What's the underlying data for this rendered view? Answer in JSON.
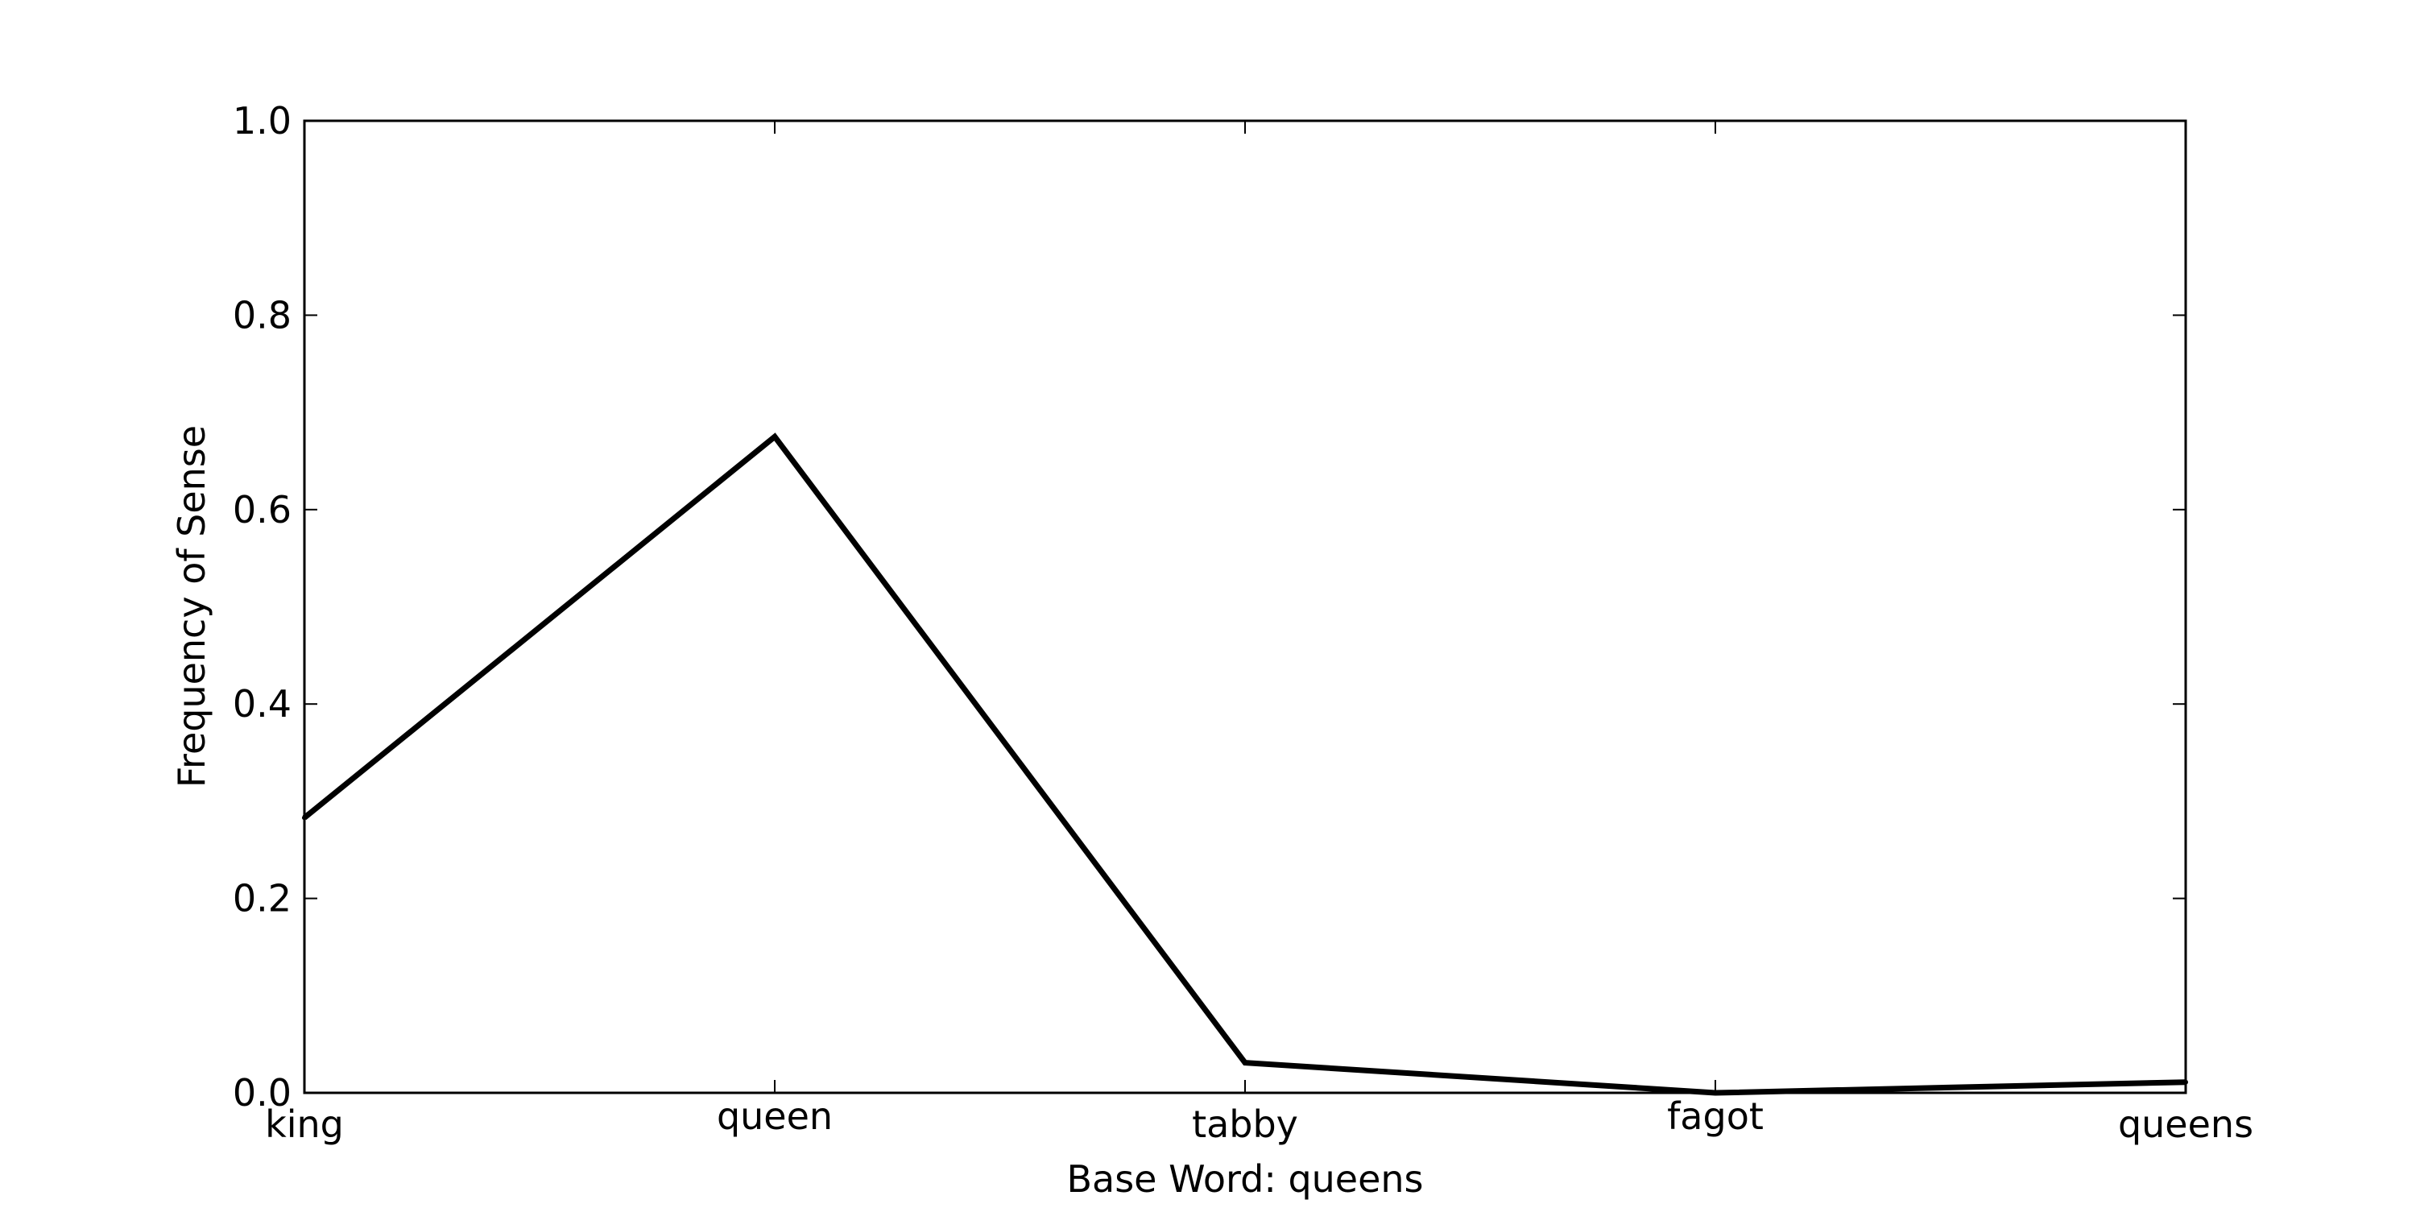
{
  "chart_data": {
    "type": "line",
    "title": "",
    "xlabel": "Base Word: queens",
    "ylabel": "Frequency of Sense",
    "categories": [
      "king",
      "queen",
      "tabby",
      "fagot",
      "queens"
    ],
    "series": [
      {
        "values": [
          0.283,
          0.675,
          0.031,
          0.0,
          0.011
        ]
      }
    ],
    "ylim": [
      0,
      1
    ],
    "yticks": [
      "0.0",
      "0.2",
      "0.4",
      "0.6",
      "0.8",
      "1.0"
    ],
    "grid": false,
    "legend": "none",
    "line_color": "#000000"
  }
}
